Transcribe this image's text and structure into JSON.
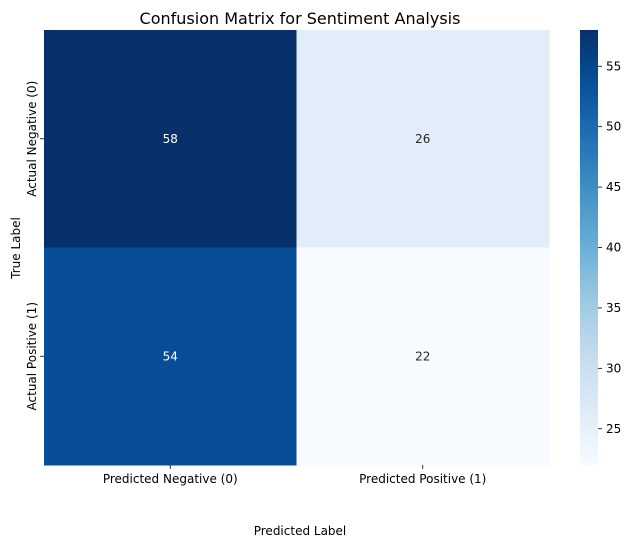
{
  "chart_data": {
    "type": "heatmap",
    "title": "Confusion Matrix for Sentiment Analysis",
    "xlabel": "Predicted Label",
    "ylabel": "True Label",
    "x_categories": [
      "Predicted Negative (0)",
      "Predicted Positive (1)"
    ],
    "y_categories": [
      "Actual Negative (0)",
      "Actual Positive (1)"
    ],
    "values": [
      [
        58,
        26
      ],
      [
        54,
        22
      ]
    ],
    "colormap": "Blues",
    "color_range": [
      22,
      58
    ],
    "colorbar_ticks": [
      25,
      30,
      35,
      40,
      45,
      50,
      55
    ],
    "colorbar_tick_labels": [
      "25",
      "30",
      "35",
      "40",
      "45",
      "50",
      "55"
    ],
    "annotated": true,
    "grid": false
  }
}
